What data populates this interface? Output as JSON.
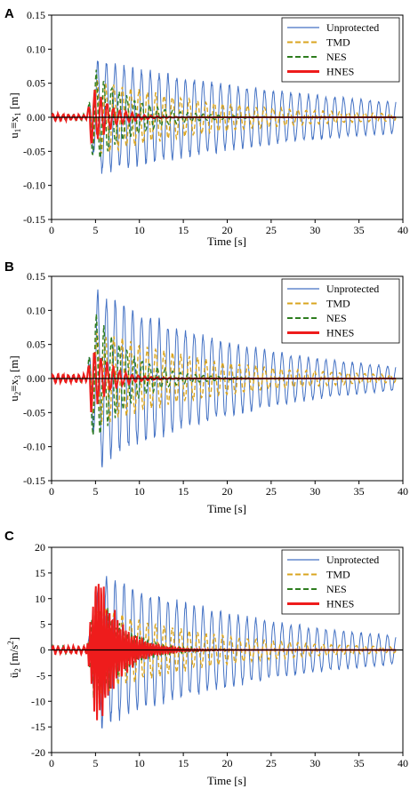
{
  "chart_data": [
    {
      "panel": "A",
      "type": "line",
      "xlabel": "Time  [s]",
      "ylabel": "u1≡x1 [m]",
      "ylabel_main": "u",
      "ylabel_sub1": "1",
      "ylabel_mid": "≡x",
      "ylabel_sub2": "1",
      "ylabel_tail": " [m]",
      "xlim": [
        0,
        40
      ],
      "ylim": [
        -0.15,
        0.15
      ],
      "xticks": [
        "0",
        "5",
        "10",
        "15",
        "20",
        "25",
        "30",
        "35",
        "40"
      ],
      "yticks": [
        "0.15",
        "0.10",
        "0.05",
        "0.00",
        "-0.05",
        "-0.10",
        "-0.15"
      ],
      "legend_position": "top-right",
      "series": [
        {
          "name": "Unprotected",
          "color": "#4472c4",
          "style": "solid",
          "peak_time": 5.2,
          "peak": 0.082,
          "decay": 0.038,
          "freq": 1.0,
          "early": 0.003
        },
        {
          "name": "TMD",
          "color": "#daa520",
          "style": "dashed",
          "peak_time": 5.0,
          "peak": 0.055,
          "decay": 0.07,
          "freq": 1.05,
          "early": 0.003
        },
        {
          "name": "NES",
          "color": "#2e7d1f",
          "style": "dashed",
          "peak_time": 4.8,
          "peak": 0.07,
          "decay": 0.22,
          "freq": 1.15,
          "early": 0.004
        },
        {
          "name": "HNES",
          "color": "#ee1c1c",
          "style": "solid",
          "peak_time": 4.5,
          "peak": 0.042,
          "decay": 0.45,
          "freq": 1.4,
          "early": 0.004
        }
      ]
    },
    {
      "panel": "B",
      "type": "line",
      "xlabel": "Time  [s]",
      "ylabel": "u2≡x3 [m]",
      "ylabel_main": "u",
      "ylabel_sub1": "2",
      "ylabel_mid": "≡x",
      "ylabel_sub2": "3",
      "ylabel_tail": " [m]",
      "xlim": [
        0,
        40
      ],
      "ylim": [
        -0.15,
        0.15
      ],
      "xticks": [
        "0",
        "5",
        "10",
        "15",
        "20",
        "25",
        "30",
        "35",
        "40"
      ],
      "yticks": [
        "0.15",
        "0.10",
        "0.05",
        "0.00",
        "-0.05",
        "-0.10",
        "-0.15"
      ],
      "legend_position": "top-right",
      "series": [
        {
          "name": "Unprotected",
          "color": "#4472c4",
          "style": "solid",
          "peak_time": 5.2,
          "peak": 0.125,
          "decay": 0.058,
          "freq": 1.0,
          "early": 0.004
        },
        {
          "name": "TMD",
          "color": "#daa520",
          "style": "dashed",
          "peak_time": 5.0,
          "peak": 0.07,
          "decay": 0.075,
          "freq": 1.05,
          "early": 0.004
        },
        {
          "name": "NES",
          "color": "#2e7d1f",
          "style": "dashed",
          "peak_time": 4.8,
          "peak": 0.1,
          "decay": 0.25,
          "freq": 1.15,
          "early": 0.005
        },
        {
          "name": "HNES",
          "color": "#ee1c1c",
          "style": "solid",
          "peak_time": 4.5,
          "peak": 0.045,
          "decay": 0.45,
          "freq": 1.4,
          "early": 0.005
        }
      ]
    },
    {
      "panel": "C",
      "type": "line",
      "xlabel": "Time  [s]",
      "ylabel": "ü2 [m/s2]",
      "ylabel_main": "ü",
      "ylabel_sub1": "2",
      "ylabel_mid": " [m/s",
      "ylabel_sup": "2",
      "ylabel_tail": "]",
      "xlim": [
        0,
        40
      ],
      "ylim": [
        -20,
        20
      ],
      "xticks": [
        "0",
        "5",
        "10",
        "15",
        "20",
        "25",
        "30",
        "35",
        "40"
      ],
      "yticks": [
        "20",
        "15",
        "10",
        "5",
        "0",
        "-5",
        "-10",
        "-15",
        "-20"
      ],
      "legend_position": "top-right",
      "series": [
        {
          "name": "Unprotected",
          "color": "#4472c4",
          "style": "solid",
          "peak_time": 5.5,
          "peak": 14.5,
          "decay": 0.05,
          "freq": 1.0,
          "early": 0.4
        },
        {
          "name": "TMD",
          "color": "#daa520",
          "style": "dashed",
          "peak_time": 5.3,
          "peak": 8.5,
          "decay": 0.08,
          "freq": 1.05,
          "early": 0.4
        },
        {
          "name": "NES",
          "color": "#2e7d1f",
          "style": "dashed",
          "peak_time": 5.0,
          "peak": 10.5,
          "decay": 0.3,
          "freq": 2.2,
          "early": 0.6
        },
        {
          "name": "HNES",
          "color": "#ee1c1c",
          "style": "solid",
          "peak_time": 5.2,
          "peak": 14.5,
          "decay": 0.4,
          "freq": 3.2,
          "early": 0.6
        }
      ]
    }
  ]
}
